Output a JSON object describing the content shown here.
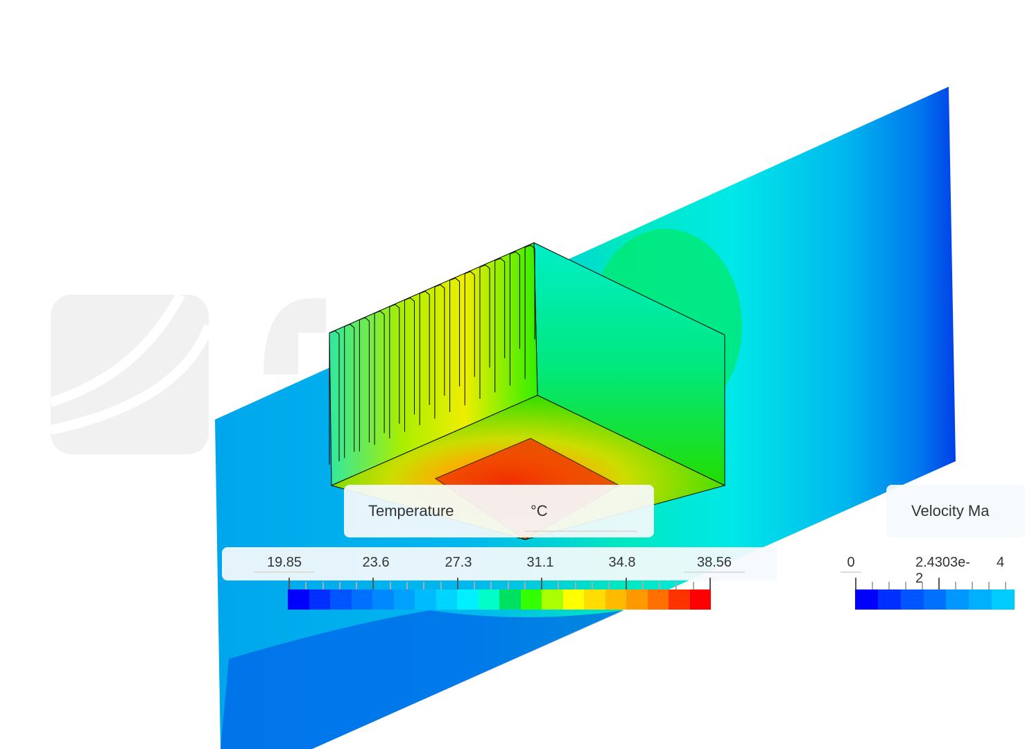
{
  "temperature_legend": {
    "title": "Temperature",
    "unit": "°C",
    "labels": [
      "19.85",
      "23.6",
      "27.3",
      "31.1",
      "34.8",
      "38.56"
    ],
    "colors": [
      "#0000ff",
      "#0030ff",
      "#0055ff",
      "#0070ff",
      "#0088ff",
      "#00a0ff",
      "#00bbff",
      "#00d4ff",
      "#00f0ff",
      "#00ffc8",
      "#00e060",
      "#33ff00",
      "#aaff00",
      "#ffff00",
      "#ffdd00",
      "#ffbb00",
      "#ff9900",
      "#ff7000",
      "#ff3300",
      "#ff0000"
    ]
  },
  "velocity_legend": {
    "title": "Velocity Ma",
    "labels": [
      "0",
      "2.4303e-2",
      "4"
    ],
    "colors": [
      "#0000ff",
      "#0030ff",
      "#0055ff",
      "#0070ff",
      "#0098ff",
      "#00b0ff",
      "#00ccff"
    ]
  },
  "watermark": "SimScale"
}
